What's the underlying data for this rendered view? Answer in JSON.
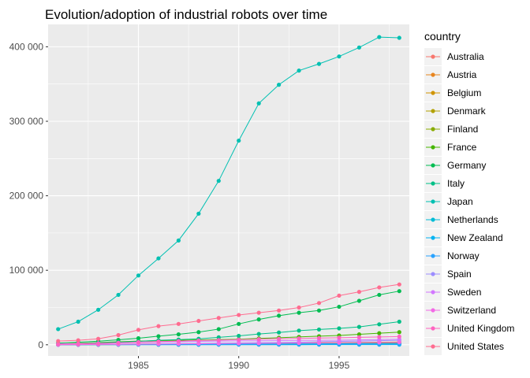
{
  "chart_data": {
    "type": "line",
    "title": "Evolution/adoption of industrial robots over time",
    "xlabel": "",
    "ylabel": "",
    "x": [
      1981,
      1982,
      1983,
      1984,
      1985,
      1986,
      1987,
      1988,
      1989,
      1990,
      1991,
      1992,
      1993,
      1994,
      1995,
      1996,
      1997,
      1998
    ],
    "xlim": [
      1980.5,
      1998.5
    ],
    "ylim": [
      -15000,
      430000
    ],
    "x_ticks": [
      1985,
      1990,
      1995
    ],
    "x_tick_labels": [
      "1985",
      "1990",
      "1995"
    ],
    "y_ticks": [
      0,
      100000,
      200000,
      300000,
      400000
    ],
    "y_tick_labels": [
      "0",
      "100 000",
      "200 000",
      "300 000",
      "400 000"
    ],
    "grid": true,
    "legend_title": "country",
    "legend_position": "right",
    "series": [
      {
        "name": "Australia",
        "color": "#F8766D",
        "values": [
          200,
          300,
          400,
          500,
          600,
          700,
          800,
          900,
          1000,
          1100,
          1200,
          1300,
          1400,
          1500,
          1600,
          1700,
          1800,
          1900
        ]
      },
      {
        "name": "Austria",
        "color": "#E7851E",
        "values": [
          100,
          150,
          200,
          300,
          400,
          500,
          600,
          700,
          800,
          1000,
          1200,
          1400,
          1600,
          1800,
          2000,
          2200,
          2500,
          2800
        ]
      },
      {
        "name": "Belgium",
        "color": "#D09400",
        "values": [
          300,
          400,
          600,
          800,
          1000,
          1200,
          1400,
          1600,
          1800,
          2000,
          2200,
          2400,
          2600,
          2800,
          3000,
          3200,
          3500,
          3800
        ]
      },
      {
        "name": "Denmark",
        "color": "#B2A100",
        "values": [
          100,
          150,
          200,
          250,
          300,
          400,
          500,
          600,
          700,
          800,
          900,
          1000,
          1100,
          1200,
          1300,
          1400,
          1500,
          1600
        ]
      },
      {
        "name": "Finland",
        "color": "#89AC00",
        "values": [
          100,
          200,
          300,
          400,
          500,
          600,
          700,
          800,
          900,
          1000,
          1100,
          1200,
          1300,
          1400,
          1500,
          1600,
          1700,
          1800
        ]
      },
      {
        "name": "France",
        "color": "#45B500",
        "values": [
          1000,
          2000,
          3000,
          4000,
          5000,
          5500,
          6000,
          6500,
          7000,
          7500,
          8500,
          9500,
          10500,
          11500,
          12500,
          14000,
          15500,
          17000
        ]
      },
      {
        "name": "Germany",
        "color": "#00BC51",
        "values": [
          2300,
          3500,
          4800,
          6600,
          8800,
          11500,
          14000,
          17000,
          21000,
          28000,
          34000,
          39000,
          43000,
          46000,
          51000,
          59000,
          67000,
          72000
        ]
      },
      {
        "name": "Italy",
        "color": "#00C087",
        "values": [
          1000,
          1500,
          2500,
          3500,
          4500,
          6000,
          7000,
          8000,
          10000,
          12000,
          14500,
          16500,
          19000,
          20500,
          22000,
          24000,
          27500,
          31000
        ]
      },
      {
        "name": "Japan",
        "color": "#00C0B2",
        "values": [
          21000,
          31000,
          47000,
          67000,
          93000,
          116000,
          140000,
          176000,
          220000,
          274000,
          324000,
          349000,
          368000,
          377000,
          387000,
          399000,
          413000,
          412000
        ]
      },
      {
        "name": "Netherlands",
        "color": "#00BCD6",
        "values": [
          100,
          200,
          300,
          400,
          500,
          600,
          700,
          800,
          900,
          1000,
          1100,
          1200,
          1300,
          1400,
          1500,
          1600,
          1700,
          1800
        ]
      },
      {
        "name": "New Zealand",
        "color": "#00B3F2",
        "values": [
          10,
          20,
          30,
          40,
          50,
          60,
          70,
          80,
          90,
          100,
          110,
          120,
          130,
          140,
          150,
          160,
          170,
          180
        ]
      },
      {
        "name": "Norway",
        "color": "#29A3FF",
        "values": [
          200,
          250,
          300,
          350,
          400,
          450,
          500,
          550,
          600,
          650,
          700,
          750,
          800,
          850,
          900,
          950,
          1000,
          1050
        ]
      },
      {
        "name": "Spain",
        "color": "#9C8DFF",
        "values": [
          200,
          400,
          600,
          800,
          1000,
          1300,
          1600,
          1900,
          2200,
          2500,
          2800,
          3100,
          3500,
          4000,
          4500,
          5000,
          5500,
          6000
        ]
      },
      {
        "name": "Sweden",
        "color": "#D277FF",
        "values": [
          1200,
          1500,
          2000,
          2500,
          3000,
          3500,
          4000,
          4500,
          5000,
          5200,
          5400,
          5600,
          5800,
          6000,
          6200,
          6500,
          7000,
          7500
        ]
      },
      {
        "name": "Switzerland",
        "color": "#F369E6",
        "values": [
          100,
          200,
          400,
          600,
          800,
          1000,
          1200,
          1400,
          1600,
          1800,
          2000,
          2200,
          2400,
          2600,
          2800,
          3000,
          3200,
          3400
        ]
      },
      {
        "name": "United Kingdom",
        "color": "#FF63C0",
        "values": [
          700,
          1100,
          1700,
          2600,
          3500,
          4300,
          5000,
          5800,
          6300,
          6900,
          7500,
          8000,
          8500,
          9000,
          9500,
          10000,
          10500,
          11000
        ]
      },
      {
        "name": "United States",
        "color": "#FF6C90",
        "values": [
          5000,
          6000,
          8000,
          13000,
          20000,
          25000,
          28000,
          32000,
          36000,
          40000,
          43000,
          46000,
          50000,
          56000,
          66000,
          71000,
          77000,
          81000
        ]
      }
    ]
  }
}
